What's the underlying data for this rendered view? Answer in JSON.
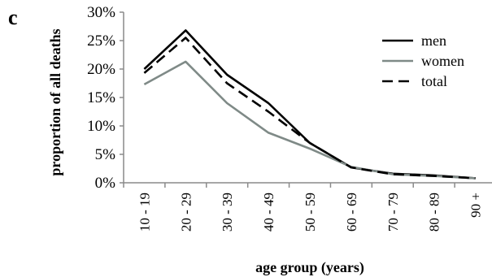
{
  "panel_label": "c",
  "chart_data": {
    "type": "line",
    "title": "",
    "xlabel": "age group (years)",
    "ylabel": "proportion of all deaths",
    "categories": [
      "10 - 19",
      "20 - 29",
      "30 - 39",
      "40 - 49",
      "50 - 59",
      "60 - 69",
      "70 - 79",
      "80 - 89",
      "90 +"
    ],
    "ylim": [
      0,
      30
    ],
    "yticks": [
      0,
      5,
      10,
      15,
      20,
      25,
      30
    ],
    "ytick_labels": [
      "0%",
      "5%",
      "10%",
      "15%",
      "20%",
      "25%",
      "30%"
    ],
    "grid": false,
    "legend_position": "top-right",
    "series": [
      {
        "name": "men",
        "color": "#000000",
        "dash": "solid",
        "values": [
          20.0,
          26.8,
          19.0,
          14.0,
          7.0,
          2.7,
          1.6,
          1.3,
          0.8
        ]
      },
      {
        "name": "women",
        "color": "#7f8a87",
        "dash": "solid",
        "values": [
          17.3,
          21.3,
          14.0,
          8.8,
          6.0,
          2.8,
          1.5,
          1.2,
          0.8
        ]
      },
      {
        "name": "total",
        "color": "#000000",
        "dash": "dashed",
        "values": [
          19.3,
          25.5,
          17.5,
          12.5,
          7.0,
          2.7,
          1.5,
          1.2,
          0.8
        ]
      }
    ]
  }
}
